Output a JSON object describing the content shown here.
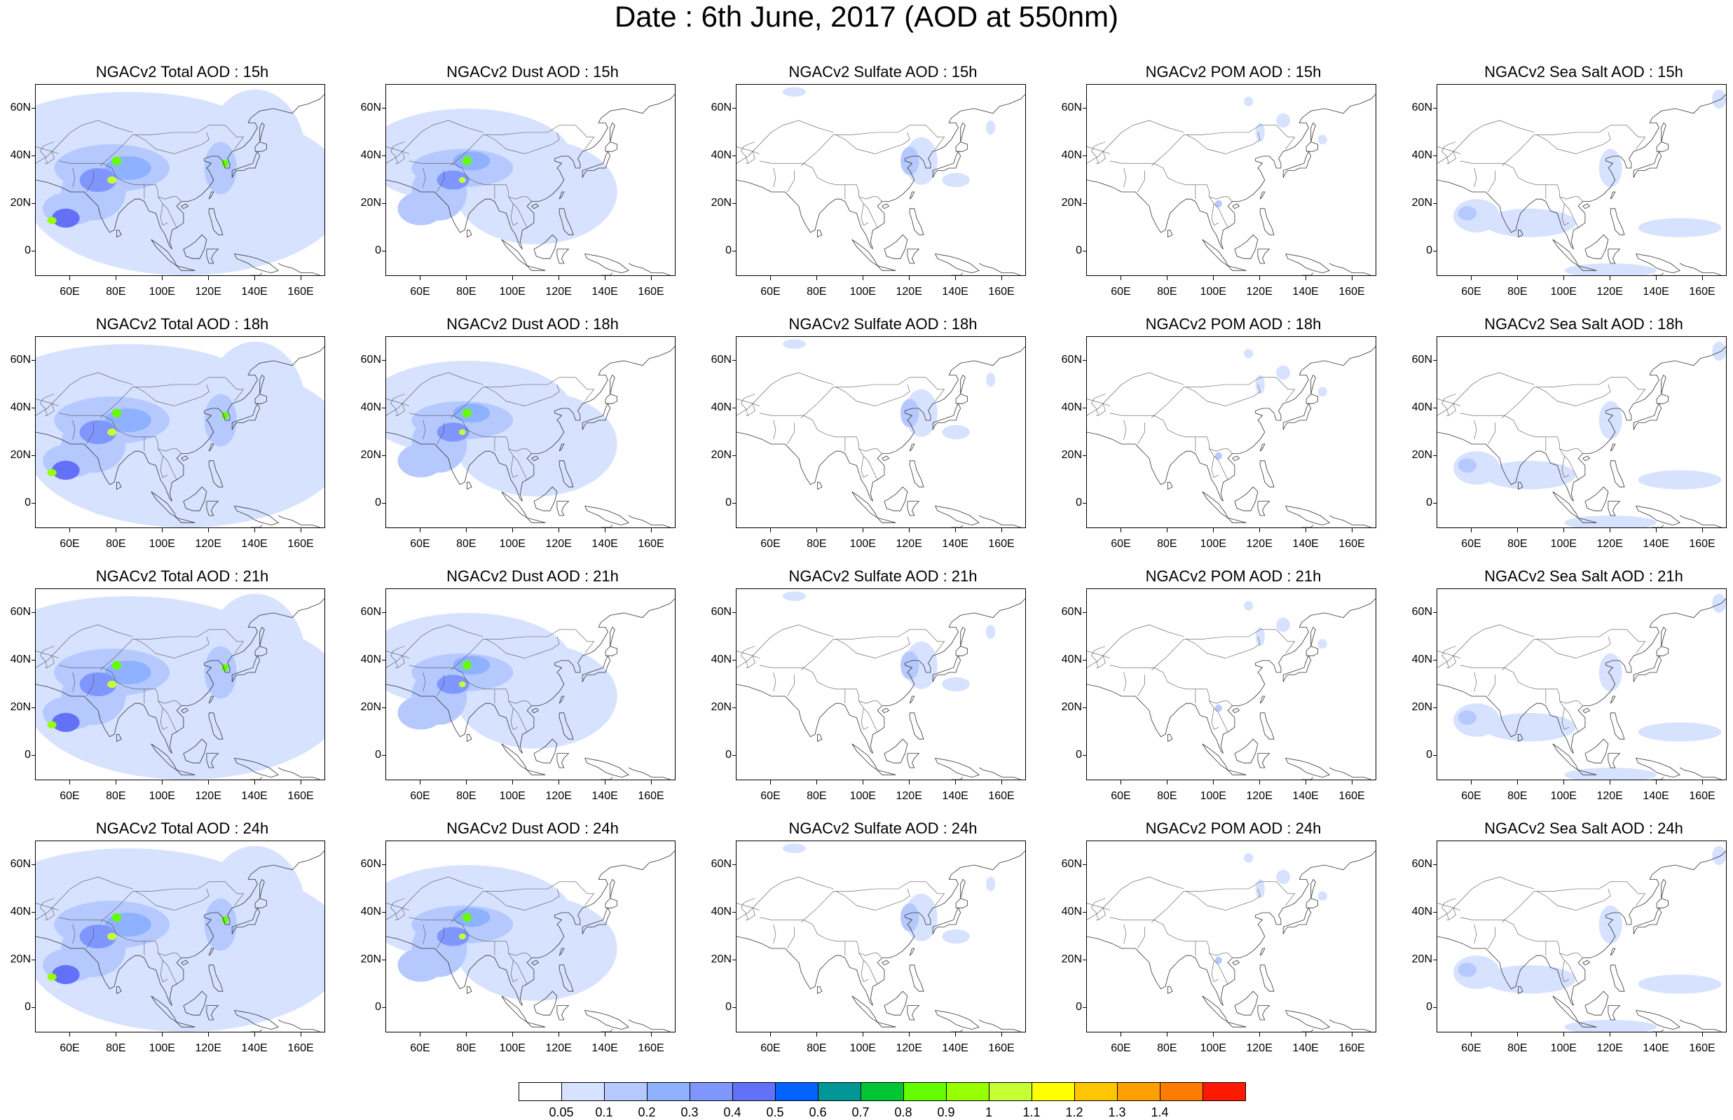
{
  "title": "Date : 6th June, 2017 (AOD at 550nm)",
  "axes": {
    "lat_labels": [
      "60N",
      "40N",
      "20N",
      "0"
    ],
    "lon_labels": [
      "60E",
      "80E",
      "100E",
      "120E",
      "140E",
      "160E"
    ]
  },
  "panels": [
    {
      "title": "NGACv2 Total AOD : 15h",
      "field": "total",
      "hour": 15
    },
    {
      "title": "NGACv2 Dust AOD : 15h",
      "field": "dust",
      "hour": 15
    },
    {
      "title": "NGACv2 Sulfate AOD : 15h",
      "field": "sulfate",
      "hour": 15
    },
    {
      "title": "NGACv2 POM AOD : 15h",
      "field": "pom",
      "hour": 15
    },
    {
      "title": "NGACv2 Sea Salt AOD : 15h",
      "field": "seasalt",
      "hour": 15
    },
    {
      "title": "NGACv2 Total AOD : 18h",
      "field": "total",
      "hour": 18
    },
    {
      "title": "NGACv2 Dust AOD : 18h",
      "field": "dust",
      "hour": 18
    },
    {
      "title": "NGACv2 Sulfate AOD : 18h",
      "field": "sulfate",
      "hour": 18
    },
    {
      "title": "NGACv2 POM AOD : 18h",
      "field": "pom",
      "hour": 18
    },
    {
      "title": "NGACv2 Sea Salt AOD : 18h",
      "field": "seasalt",
      "hour": 18
    },
    {
      "title": "NGACv2 Total AOD : 21h",
      "field": "total",
      "hour": 21
    },
    {
      "title": "NGACv2 Dust AOD : 21h",
      "field": "dust",
      "hour": 21
    },
    {
      "title": "NGACv2 Sulfate AOD : 21h",
      "field": "sulfate",
      "hour": 21
    },
    {
      "title": "NGACv2 POM AOD : 21h",
      "field": "pom",
      "hour": 21
    },
    {
      "title": "NGACv2 Sea Salt AOD : 21h",
      "field": "seasalt",
      "hour": 21
    },
    {
      "title": "NGACv2 Total AOD : 24h",
      "field": "total",
      "hour": 24
    },
    {
      "title": "NGACv2 Dust AOD : 24h",
      "field": "dust",
      "hour": 24
    },
    {
      "title": "NGACv2 Sulfate AOD : 24h",
      "field": "sulfate",
      "hour": 24
    },
    {
      "title": "NGACv2 POM AOD : 24h",
      "field": "pom",
      "hour": 24
    },
    {
      "title": "NGACv2 Sea Salt  AOD : 24h",
      "field": "seasalt",
      "hour": 24
    }
  ],
  "colorbar": {
    "labels": [
      "0.05",
      "0.1",
      "0.2",
      "0.3",
      "0.4",
      "0.5",
      "0.6",
      "0.7",
      "0.8",
      "0.9",
      "1",
      "1.1",
      "1.2",
      "1.3",
      "1.4"
    ],
    "colors": [
      "#ffffff",
      "#d6e2ff",
      "#b5c9ff",
      "#8eb2ff",
      "#7f96ff",
      "#6370f8",
      "#0063ff",
      "#009696",
      "#00c633",
      "#63ff00",
      "#96ff00",
      "#c6ff33",
      "#ffff00",
      "#ffc600",
      "#ffa000",
      "#ff7c00",
      "#ff1900"
    ]
  }
}
